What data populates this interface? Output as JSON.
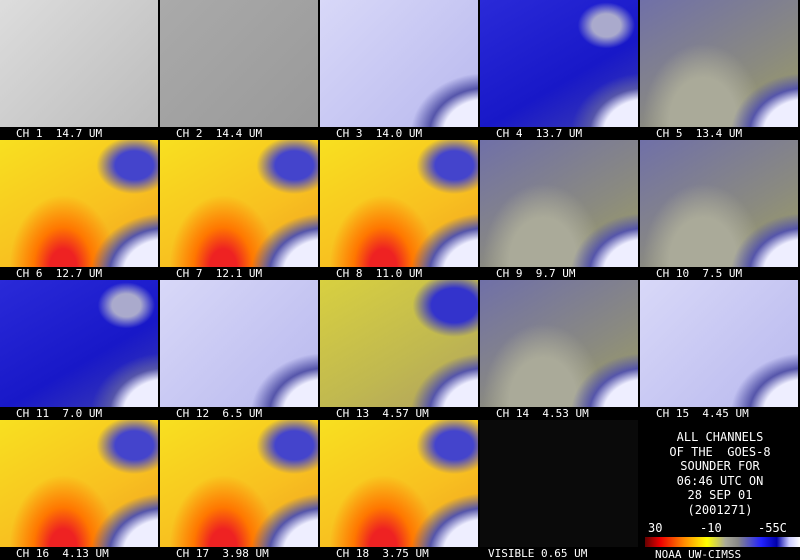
{
  "panels": [
    {
      "label": "CH 1  14.7 UM"
    },
    {
      "label": "CH 2  14.4 UM"
    },
    {
      "label": "CH 3  14.0 UM"
    },
    {
      "label": "CH 4  13.7 UM"
    },
    {
      "label": "CH 5  13.4 UM"
    },
    {
      "label": "CH 6  12.7 UM"
    },
    {
      "label": "CH 7  12.1 UM"
    },
    {
      "label": "CH 8  11.0 UM"
    },
    {
      "label": "CH 9  9.7 UM"
    },
    {
      "label": "CH 10  7.5 UM"
    },
    {
      "label": "CH 11  7.0 UM"
    },
    {
      "label": "CH 12  6.5 UM"
    },
    {
      "label": "CH 13  4.57 UM"
    },
    {
      "label": "CH 14  4.53 UM"
    },
    {
      "label": "CH 15  4.45 UM"
    },
    {
      "label": "CH 16  4.13 UM"
    },
    {
      "label": "CH 17  3.98 UM"
    },
    {
      "label": "CH 18  3.75 UM"
    },
    {
      "label": "VISIBLE 0.65 UM"
    }
  ],
  "info": {
    "lines": [
      "ALL CHANNELS",
      "OF THE  GOES-8",
      "SOUNDER FOR",
      "06:46 UTC ON",
      "28 SEP 01",
      "(2001271)"
    ],
    "scale_labels": [
      "30",
      "-10",
      "-55C"
    ],
    "credit": "NOAA UW-CIMSS"
  }
}
